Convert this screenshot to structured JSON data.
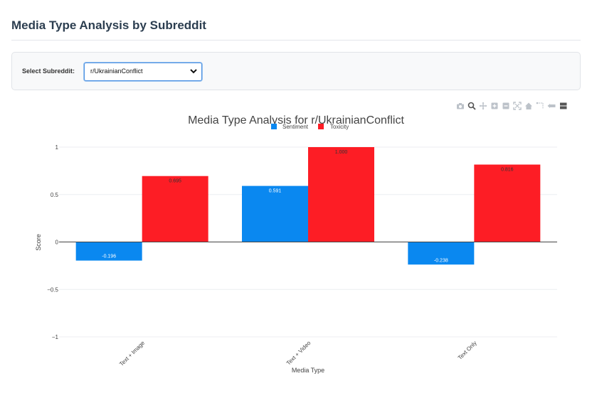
{
  "page": {
    "title": "Media Type Analysis by Subreddit"
  },
  "controls": {
    "label": "Select Subreddit:",
    "selected": "r/UkrainianConflict"
  },
  "modebar": [
    "camera-icon",
    "zoom-icon",
    "pan-icon",
    "zoom-in-icon",
    "zoom-out-icon",
    "autoscale-icon",
    "reset-axes-icon",
    "spike-lines-icon",
    "hover-closest-icon",
    "hover-compare-icon"
  ],
  "chart_data": {
    "type": "bar",
    "title": "Media Type Analysis for r/UkrainianConflict",
    "xlabel": "Media Type",
    "ylabel": "Score",
    "categories": [
      "Text + Image",
      "Text + Video",
      "Text Only"
    ],
    "series": [
      {
        "name": "Sentiment",
        "color": "#0a88f0",
        "values": [
          -0.196,
          0.591,
          -0.238
        ],
        "labels": [
          "-0.196",
          "0.591",
          "-0.238"
        ]
      },
      {
        "name": "Toxicity",
        "color": "#fd1d25",
        "values": [
          0.695,
          1.0,
          0.816
        ],
        "labels": [
          "0.695",
          "1.000",
          "0.816"
        ]
      }
    ],
    "ylim": [
      -1,
      1
    ],
    "yticks": [
      1,
      0.5,
      0,
      -0.5,
      -1
    ],
    "ytick_labels": [
      "1",
      "0.5",
      "0",
      "−0.5",
      "−1"
    ],
    "legend": "top-center",
    "grid": true
  }
}
